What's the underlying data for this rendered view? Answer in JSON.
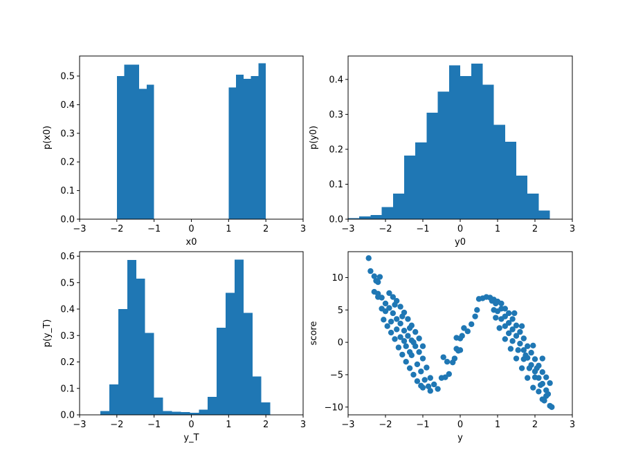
{
  "chart_data": [
    {
      "type": "bar",
      "panel": "top-left",
      "xlabel": "x0",
      "ylabel": "p(x0)",
      "xlim": [
        -3,
        3
      ],
      "ylim": [
        0,
        0.57
      ],
      "xticks": [
        -3,
        -2,
        -1,
        0,
        1,
        2,
        3
      ],
      "yticks": [
        0.0,
        0.1,
        0.2,
        0.3,
        0.4,
        0.5
      ],
      "bins": [
        {
          "x0": -2.0,
          "x1": -1.8,
          "value": 0.5
        },
        {
          "x0": -1.8,
          "x1": -1.6,
          "value": 0.54
        },
        {
          "x0": -1.6,
          "x1": -1.4,
          "value": 0.54
        },
        {
          "x0": -1.4,
          "x1": -1.2,
          "value": 0.455
        },
        {
          "x0": -1.2,
          "x1": -1.0,
          "value": 0.47
        },
        {
          "x0": 1.0,
          "x1": 1.2,
          "value": 0.46
        },
        {
          "x0": 1.2,
          "x1": 1.4,
          "value": 0.505
        },
        {
          "x0": 1.4,
          "x1": 1.6,
          "value": 0.49
        },
        {
          "x0": 1.6,
          "x1": 1.8,
          "value": 0.5
        },
        {
          "x0": 1.8,
          "x1": 2.0,
          "value": 0.545
        }
      ],
      "color": "#1f77b4"
    },
    {
      "type": "bar",
      "panel": "top-right",
      "xlabel": "y0",
      "ylabel": "p(y0)",
      "xlim": [
        -3,
        3
      ],
      "ylim": [
        0,
        0.467
      ],
      "xticks": [
        -3,
        -2,
        -1,
        0,
        1,
        2,
        3
      ],
      "yticks": [
        0.0,
        0.1,
        0.2,
        0.3,
        0.4
      ],
      "bins": [
        {
          "x0": -3.0,
          "x1": -2.7,
          "value": 0.003
        },
        {
          "x0": -2.7,
          "x1": -2.4,
          "value": 0.008
        },
        {
          "x0": -2.4,
          "x1": -2.1,
          "value": 0.012
        },
        {
          "x0": -2.1,
          "x1": -1.8,
          "value": 0.035
        },
        {
          "x0": -1.8,
          "x1": -1.5,
          "value": 0.073
        },
        {
          "x0": -1.5,
          "x1": -1.2,
          "value": 0.182
        },
        {
          "x0": -1.2,
          "x1": -0.9,
          "value": 0.22
        },
        {
          "x0": -0.9,
          "x1": -0.6,
          "value": 0.305
        },
        {
          "x0": -0.6,
          "x1": -0.3,
          "value": 0.365
        },
        {
          "x0": -0.3,
          "x1": 0.0,
          "value": 0.44
        },
        {
          "x0": 0.0,
          "x1": 0.3,
          "value": 0.41
        },
        {
          "x0": 0.3,
          "x1": 0.6,
          "value": 0.445
        },
        {
          "x0": 0.6,
          "x1": 0.9,
          "value": 0.385
        },
        {
          "x0": 0.9,
          "x1": 1.2,
          "value": 0.27
        },
        {
          "x0": 1.2,
          "x1": 1.5,
          "value": 0.222
        },
        {
          "x0": 1.5,
          "x1": 1.8,
          "value": 0.125
        },
        {
          "x0": 1.8,
          "x1": 2.1,
          "value": 0.073
        },
        {
          "x0": 2.1,
          "x1": 2.4,
          "value": 0.025
        }
      ],
      "color": "#1f77b4"
    },
    {
      "type": "bar",
      "panel": "bottom-left",
      "xlabel": "y_T",
      "ylabel": "p(y_T)",
      "xlim": [
        -3,
        3
      ],
      "ylim": [
        0,
        0.617
      ],
      "xticks": [
        -3,
        -2,
        -1,
        0,
        1,
        2,
        3
      ],
      "yticks": [
        0.0,
        0.1,
        0.2,
        0.3,
        0.4,
        0.5,
        0.6
      ],
      "bins": [
        {
          "x0": -2.44,
          "x1": -2.2,
          "value": 0.015
        },
        {
          "x0": -2.2,
          "x1": -1.96,
          "value": 0.115
        },
        {
          "x0": -1.96,
          "x1": -1.72,
          "value": 0.4
        },
        {
          "x0": -1.72,
          "x1": -1.48,
          "value": 0.585
        },
        {
          "x0": -1.48,
          "x1": -1.24,
          "value": 0.515
        },
        {
          "x0": -1.24,
          "x1": -1.0,
          "value": 0.31
        },
        {
          "x0": -1.0,
          "x1": -0.76,
          "value": 0.065
        },
        {
          "x0": -0.76,
          "x1": -0.52,
          "value": 0.015
        },
        {
          "x0": -0.52,
          "x1": -0.28,
          "value": 0.012
        },
        {
          "x0": -0.28,
          "x1": -0.04,
          "value": 0.01
        },
        {
          "x0": -0.04,
          "x1": 0.2,
          "value": 0.008
        },
        {
          "x0": 0.2,
          "x1": 0.44,
          "value": 0.02
        },
        {
          "x0": 0.44,
          "x1": 0.68,
          "value": 0.068
        },
        {
          "x0": 0.68,
          "x1": 0.92,
          "value": 0.33
        },
        {
          "x0": 0.92,
          "x1": 1.16,
          "value": 0.462
        },
        {
          "x0": 1.16,
          "x1": 1.4,
          "value": 0.587
        },
        {
          "x0": 1.4,
          "x1": 1.64,
          "value": 0.385
        },
        {
          "x0": 1.64,
          "x1": 1.88,
          "value": 0.145
        },
        {
          "x0": 1.88,
          "x1": 2.12,
          "value": 0.047
        }
      ],
      "color": "#1f77b4"
    },
    {
      "type": "scatter",
      "panel": "bottom-right",
      "xlabel": "y",
      "ylabel": "score",
      "xlim": [
        -3,
        3
      ],
      "ylim": [
        -11.2,
        14.0
      ],
      "xticks": [
        -3,
        -2,
        -1,
        0,
        1,
        2,
        3
      ],
      "yticks": [
        -10,
        -5,
        0,
        5,
        10
      ],
      "color": "#1f77b4",
      "points": [
        [
          -2.45,
          13.0
        ],
        [
          -2.4,
          11.0
        ],
        [
          -2.3,
          10.2
        ],
        [
          -2.25,
          9.5
        ],
        [
          -2.15,
          10.1
        ],
        [
          -2.2,
          9.3
        ],
        [
          -2.2,
          7.5
        ],
        [
          -2.1,
          6.9
        ],
        [
          -2.0,
          6.0
        ],
        [
          -1.9,
          5.3
        ],
        [
          -1.8,
          4.5
        ],
        [
          -1.7,
          3.6
        ],
        [
          -1.6,
          2.9
        ],
        [
          -1.5,
          1.8
        ],
        [
          -1.4,
          1.0
        ],
        [
          -1.3,
          0.3
        ],
        [
          -1.2,
          -0.6
        ],
        [
          -1.1,
          -1.5
        ],
        [
          -1.0,
          -2.5
        ],
        [
          -0.9,
          -3.9
        ],
        [
          -0.8,
          -5.5
        ],
        [
          -0.7,
          -6.5
        ],
        [
          -0.6,
          -7.2
        ],
        [
          -1.0,
          -7.0
        ],
        [
          -0.8,
          -7.5
        ],
        [
          -0.5,
          -5.5
        ],
        [
          -0.4,
          -5.4
        ],
        [
          -0.3,
          -4.9
        ],
        [
          -0.45,
          -2.3
        ],
        [
          -0.35,
          -3.0
        ],
        [
          -0.2,
          -3.1
        ],
        [
          -0.15,
          -2.5
        ],
        [
          -0.1,
          -1.0
        ],
        [
          -0.05,
          -1.3
        ],
        [
          0.0,
          -1.2
        ],
        [
          -0.1,
          0.7
        ],
        [
          0.0,
          0.6
        ],
        [
          0.05,
          1.0
        ],
        [
          0.1,
          2.2
        ],
        [
          0.2,
          1.7
        ],
        [
          0.3,
          2.8
        ],
        [
          0.4,
          4.0
        ],
        [
          0.45,
          5.0
        ],
        [
          0.5,
          6.7
        ],
        [
          0.6,
          6.8
        ],
        [
          0.7,
          7.0
        ],
        [
          0.8,
          6.9
        ],
        [
          0.9,
          6.6
        ],
        [
          1.0,
          6.3
        ],
        [
          1.1,
          5.2
        ],
        [
          1.2,
          4.0
        ],
        [
          1.3,
          3.0
        ],
        [
          1.4,
          2.0
        ],
        [
          1.5,
          1.0
        ],
        [
          1.6,
          -0.2
        ],
        [
          1.7,
          -1.2
        ],
        [
          1.8,
          -2.4
        ],
        [
          1.9,
          -3.5
        ],
        [
          2.0,
          -4.5
        ],
        [
          2.1,
          -5.5
        ],
        [
          2.2,
          -6.4
        ],
        [
          2.3,
          -7.4
        ],
        [
          2.35,
          -8.0
        ],
        [
          2.4,
          -9.8
        ],
        [
          2.45,
          -10.0
        ],
        [
          2.2,
          -8.8
        ],
        [
          2.25,
          -9.0
        ],
        [
          2.1,
          -7.6
        ],
        [
          1.95,
          -7.0
        ],
        [
          1.8,
          -5.5
        ],
        [
          1.65,
          -4.0
        ],
        [
          1.5,
          -2.5
        ],
        [
          1.35,
          -1.0
        ],
        [
          1.2,
          0.5
        ],
        [
          1.05,
          2.2
        ],
        [
          0.95,
          3.8
        ],
        [
          0.9,
          5.0
        ],
        [
          -2.3,
          7.8
        ],
        [
          -2.2,
          7.0
        ],
        [
          -2.1,
          5.2
        ],
        [
          -2.05,
          3.5
        ],
        [
          -1.95,
          2.5
        ],
        [
          -1.85,
          1.5
        ],
        [
          -1.75,
          0.5
        ],
        [
          -1.65,
          -0.8
        ],
        [
          -1.55,
          -1.9
        ],
        [
          -1.45,
          -3.0
        ],
        [
          -1.35,
          -4.0
        ],
        [
          -1.25,
          -5.0
        ],
        [
          -1.15,
          -6.0
        ],
        [
          -1.05,
          -6.7
        ],
        [
          -1.9,
          7.6
        ],
        [
          -1.8,
          7.0
        ],
        [
          -1.7,
          6.4
        ],
        [
          -1.6,
          5.5
        ],
        [
          -1.5,
          4.6
        ],
        [
          -1.4,
          3.6
        ],
        [
          -1.3,
          2.6
        ],
        [
          -1.2,
          1.6
        ],
        [
          -1.1,
          0.6
        ],
        [
          -1.0,
          -0.6
        ],
        [
          -2.0,
          4.8
        ],
        [
          -1.85,
          3.2
        ],
        [
          -1.7,
          2.0
        ],
        [
          -1.6,
          0.8
        ],
        [
          -1.45,
          -0.6
        ],
        [
          -1.3,
          -2.0
        ],
        [
          -1.15,
          -3.4
        ],
        [
          -1.05,
          -4.5
        ],
        [
          -0.95,
          -5.8
        ],
        [
          -0.85,
          -6.8
        ],
        [
          1.1,
          6.0
        ],
        [
          1.2,
          5.2
        ],
        [
          1.3,
          4.5
        ],
        [
          1.4,
          3.6
        ],
        [
          1.5,
          2.6
        ],
        [
          1.6,
          1.6
        ],
        [
          1.7,
          0.6
        ],
        [
          1.8,
          -0.6
        ],
        [
          1.9,
          -1.6
        ],
        [
          2.0,
          -2.6
        ],
        [
          2.1,
          -3.6
        ],
        [
          2.2,
          -4.6
        ],
        [
          2.3,
          -5.4
        ],
        [
          2.4,
          -6.3
        ],
        [
          1.0,
          4.8
        ],
        [
          1.1,
          3.6
        ],
        [
          1.2,
          2.5
        ],
        [
          1.3,
          1.4
        ],
        [
          1.4,
          0.2
        ],
        [
          1.55,
          -1.2
        ],
        [
          1.7,
          -2.6
        ],
        [
          1.85,
          -4.0
        ],
        [
          2.0,
          -5.4
        ],
        [
          2.15,
          -6.6
        ],
        [
          2.3,
          -8.3
        ],
        [
          0.85,
          6.4
        ],
        [
          0.95,
          6.0
        ],
        [
          -1.75,
          5.8
        ],
        [
          -1.55,
          4.0
        ],
        [
          -1.35,
          2.2
        ],
        [
          -1.25,
          0.0
        ],
        [
          -1.35,
          -1.5
        ],
        [
          -1.5,
          0.2
        ],
        [
          1.45,
          4.5
        ],
        [
          1.65,
          2.5
        ],
        [
          1.75,
          -2.0
        ],
        [
          1.95,
          -0.5
        ],
        [
          2.05,
          -4.0
        ],
        [
          2.2,
          -2.5
        ]
      ]
    }
  ]
}
